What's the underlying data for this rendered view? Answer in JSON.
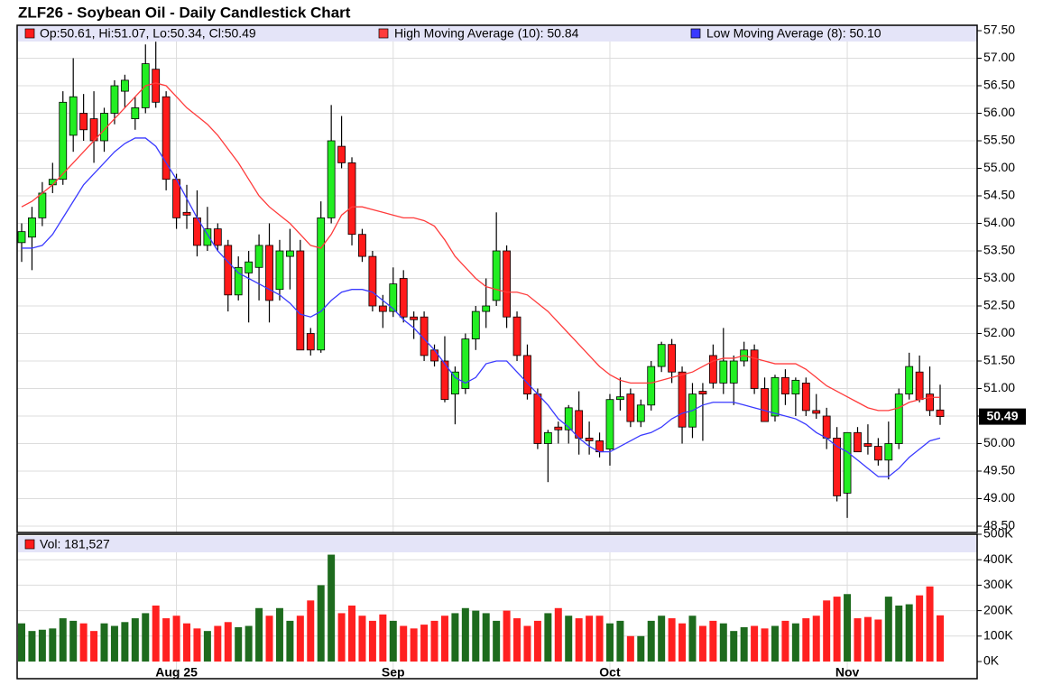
{
  "chart_data": {
    "type": "candlestick",
    "title": "ZLF26 - Soybean Oil - Daily Candlestick Chart",
    "ohlc_legend": "Op:50.61, Hi:51.07, Lo:50.34, Cl:50.49",
    "up_color": "#22ee22",
    "down_color": "#ff1a1a",
    "categories": [
      null,
      null,
      null,
      null,
      null,
      null,
      null,
      null,
      null,
      null,
      null,
      null,
      null,
      null,
      null,
      "Aug 25",
      null,
      null,
      null,
      null,
      null,
      null,
      null,
      null,
      null,
      null,
      null,
      null,
      null,
      null,
      null,
      null,
      null,
      null,
      null,
      null,
      "Sep",
      null,
      null,
      null,
      null,
      null,
      null,
      null,
      null,
      null,
      null,
      null,
      null,
      null,
      null,
      null,
      null,
      null,
      null,
      null,
      null,
      "Oct",
      null,
      null,
      null,
      null,
      null,
      null,
      null,
      null,
      null,
      null,
      null,
      null,
      null,
      null,
      null,
      null,
      null,
      null,
      null,
      null,
      null,
      null,
      "Nov",
      null,
      null,
      null,
      null,
      null,
      null,
      null,
      null,
      null
    ],
    "open": [
      53.65,
      53.75,
      54.1,
      54.7,
      54.8,
      55.6,
      56.0,
      55.9,
      55.5,
      56.0,
      56.4,
      55.9,
      56.1,
      56.8,
      56.3,
      54.8,
      54.2,
      54.1,
      53.6,
      53.9,
      53.6,
      52.7,
      53.1,
      53.2,
      53.6,
      52.8,
      53.4,
      53.5,
      52.0,
      51.7,
      54.1,
      55.4,
      55.1,
      53.8,
      53.4,
      52.5,
      52.4,
      53.0,
      52.3,
      52.3,
      51.7,
      51.5,
      50.9,
      51.0,
      51.9,
      52.4,
      52.6,
      53.5,
      52.3,
      51.6,
      50.9,
      50.0,
      50.3,
      50.25,
      50.6,
      50.1,
      50.05,
      49.9,
      50.8,
      50.9,
      50.4,
      50.7,
      51.4,
      51.8,
      51.3,
      50.3,
      50.95,
      51.6,
      51.1,
      51.1,
      51.5,
      51.7,
      51.0,
      50.5,
      51.2,
      50.9,
      51.1,
      50.6,
      50.5,
      50.1,
      49.1,
      50.2,
      50.0,
      49.95,
      49.7,
      50.0,
      50.9,
      51.3,
      50.9,
      50.61
    ],
    "high": [
      54.0,
      54.3,
      54.75,
      55.1,
      56.4,
      57.0,
      56.35,
      56.4,
      56.1,
      56.6,
      56.7,
      56.3,
      57.25,
      57.3,
      56.4,
      54.9,
      54.7,
      54.6,
      54.3,
      54.0,
      53.7,
      53.4,
      53.5,
      53.8,
      54.0,
      53.7,
      53.9,
      53.7,
      52.1,
      54.4,
      56.15,
      55.95,
      55.2,
      53.9,
      53.5,
      52.7,
      53.2,
      53.15,
      52.4,
      52.4,
      51.8,
      51.95,
      51.4,
      52.0,
      52.5,
      53.0,
      54.2,
      53.6,
      52.4,
      51.8,
      51.0,
      50.25,
      50.4,
      50.7,
      50.95,
      50.4,
      50.2,
      50.9,
      51.2,
      51.0,
      50.8,
      51.5,
      51.85,
      51.9,
      51.4,
      51.1,
      51.1,
      51.8,
      52.1,
      51.6,
      51.85,
      51.8,
      51.2,
      51.25,
      51.35,
      51.2,
      51.2,
      50.9,
      50.65,
      50.3,
      50.2,
      50.3,
      50.35,
      50.1,
      50.4,
      51.0,
      51.65,
      51.6,
      51.4,
      51.07
    ],
    "low": [
      53.3,
      53.15,
      53.95,
      54.55,
      54.7,
      55.3,
      55.5,
      55.1,
      55.3,
      55.8,
      56.1,
      55.7,
      56.0,
      56.1,
      54.6,
      53.9,
      53.9,
      53.4,
      53.5,
      53.5,
      52.4,
      52.6,
      52.2,
      52.6,
      52.2,
      52.6,
      52.8,
      51.7,
      51.6,
      51.65,
      54.0,
      55.0,
      53.6,
      53.3,
      52.4,
      52.1,
      52.3,
      52.2,
      51.9,
      51.5,
      51.4,
      50.75,
      50.35,
      50.9,
      51.7,
      52.1,
      52.5,
      52.1,
      51.5,
      50.8,
      49.9,
      49.3,
      50.0,
      50.0,
      49.8,
      49.8,
      49.75,
      49.6,
      50.6,
      50.3,
      50.3,
      50.6,
      51.3,
      51.1,
      50.0,
      50.1,
      50.05,
      51.0,
      50.9,
      50.7,
      51.4,
      50.9,
      50.4,
      50.4,
      50.7,
      50.5,
      50.5,
      50.45,
      49.9,
      48.95,
      48.65,
      49.85,
      49.8,
      49.6,
      49.35,
      49.9,
      50.8,
      50.75,
      50.5,
      50.34
    ],
    "close": [
      53.85,
      54.1,
      54.55,
      54.8,
      56.2,
      56.3,
      55.7,
      55.5,
      56.0,
      56.5,
      56.6,
      56.1,
      56.9,
      56.2,
      54.8,
      54.1,
      54.15,
      53.6,
      53.9,
      53.6,
      52.7,
      53.2,
      53.3,
      53.6,
      52.6,
      53.5,
      53.5,
      51.7,
      51.7,
      54.1,
      55.5,
      55.1,
      53.8,
      53.4,
      52.5,
      52.4,
      52.9,
      52.3,
      52.25,
      51.6,
      51.5,
      50.8,
      51.3,
      51.9,
      52.4,
      52.5,
      53.5,
      52.3,
      51.6,
      50.9,
      50.0,
      50.2,
      50.25,
      50.65,
      50.1,
      50.05,
      49.85,
      50.8,
      50.85,
      50.4,
      50.7,
      51.4,
      51.8,
      51.3,
      50.3,
      50.9,
      50.9,
      51.1,
      51.5,
      51.5,
      51.7,
      51.0,
      50.4,
      51.2,
      50.9,
      51.15,
      50.6,
      50.55,
      50.1,
      49.05,
      50.2,
      49.85,
      49.95,
      49.7,
      50.0,
      50.9,
      51.4,
      50.8,
      50.6,
      50.49
    ],
    "series": [
      {
        "name": "High Moving Average (10): 50.84",
        "color": "#ff3b3b",
        "values": [
          54.3,
          54.4,
          54.55,
          54.7,
          54.9,
          55.1,
          55.3,
          55.5,
          55.7,
          55.9,
          56.1,
          56.3,
          56.5,
          56.55,
          56.5,
          56.3,
          56.1,
          55.95,
          55.8,
          55.6,
          55.35,
          55.1,
          54.8,
          54.5,
          54.3,
          54.15,
          54.0,
          53.8,
          53.6,
          53.55,
          53.8,
          54.15,
          54.3,
          54.3,
          54.25,
          54.2,
          54.15,
          54.1,
          54.1,
          54.05,
          53.95,
          53.7,
          53.4,
          53.2,
          53.0,
          52.85,
          52.8,
          52.75,
          52.75,
          52.7,
          52.55,
          52.4,
          52.2,
          52.0,
          51.8,
          51.6,
          51.4,
          51.25,
          51.15,
          51.1,
          51.1,
          51.1,
          51.15,
          51.2,
          51.25,
          51.3,
          51.4,
          51.5,
          51.55,
          51.55,
          51.6,
          51.55,
          51.5,
          51.45,
          51.45,
          51.45,
          51.35,
          51.2,
          51.05,
          50.95,
          50.85,
          50.75,
          50.65,
          50.6,
          50.6,
          50.65,
          50.75,
          50.8,
          50.84,
          50.84
        ]
      },
      {
        "name": "Low Moving Average (8): 50.10",
        "color": "#3a3aff",
        "values": [
          53.55,
          53.55,
          53.6,
          53.8,
          54.1,
          54.4,
          54.7,
          54.9,
          55.1,
          55.3,
          55.45,
          55.55,
          55.55,
          55.4,
          55.1,
          54.8,
          54.45,
          54.1,
          53.8,
          53.5,
          53.3,
          53.1,
          53.0,
          52.9,
          52.8,
          52.7,
          52.55,
          52.35,
          52.3,
          52.4,
          52.6,
          52.75,
          52.8,
          52.8,
          52.75,
          52.6,
          52.45,
          52.25,
          52.1,
          51.9,
          51.7,
          51.45,
          51.2,
          51.1,
          51.2,
          51.45,
          51.5,
          51.5,
          51.3,
          51.1,
          50.9,
          50.7,
          50.45,
          50.3,
          50.1,
          49.95,
          49.85,
          49.85,
          49.95,
          50.05,
          50.15,
          50.2,
          50.3,
          50.45,
          50.55,
          50.6,
          50.7,
          50.75,
          50.75,
          50.75,
          50.7,
          50.65,
          50.6,
          50.55,
          50.5,
          50.45,
          50.35,
          50.2,
          50.1,
          49.95,
          49.85,
          49.7,
          49.55,
          49.4,
          49.4,
          49.55,
          49.75,
          49.9,
          50.05,
          50.1
        ]
      }
    ],
    "ylim": [
      48.5,
      57.5
    ],
    "yticks": [
      {
        "value": 48.5,
        "label": "48.50"
      },
      {
        "value": 49,
        "label": "49.00"
      },
      {
        "value": 49.5,
        "label": "49.50"
      },
      {
        "value": 50,
        "label": "50.00"
      },
      {
        "value": 50.5,
        "label": "50.50"
      },
      {
        "value": 51,
        "label": "51.00"
      },
      {
        "value": 51.5,
        "label": "51.50"
      },
      {
        "value": 52,
        "label": "52.00"
      },
      {
        "value": 52.5,
        "label": "52.50"
      },
      {
        "value": 53,
        "label": "53.00"
      },
      {
        "value": 53.5,
        "label": "53.50"
      },
      {
        "value": 54,
        "label": "54.00"
      },
      {
        "value": 54.5,
        "label": "54.50"
      },
      {
        "value": 55,
        "label": "55.00"
      },
      {
        "value": 55.5,
        "label": "55.50"
      },
      {
        "value": 56,
        "label": "56.00"
      },
      {
        "value": 56.5,
        "label": "56.50"
      },
      {
        "value": 57,
        "label": "57.00"
      },
      {
        "value": 57.5,
        "label": "57.50"
      }
    ],
    "grid": true,
    "volume": {
      "legend": "Vol: 181,527",
      "up_color": "#1e6b1e",
      "down_color": "#ff2020",
      "values": [
        150000,
        120000,
        125000,
        130000,
        170000,
        160000,
        150000,
        120000,
        150000,
        140000,
        155000,
        170000,
        190000,
        220000,
        170000,
        180000,
        150000,
        130000,
        120000,
        140000,
        155000,
        135000,
        140000,
        210000,
        180000,
        210000,
        160000,
        180000,
        240000,
        300000,
        420000,
        190000,
        220000,
        180000,
        160000,
        185000,
        160000,
        140000,
        130000,
        145000,
        160000,
        180000,
        190000,
        210000,
        200000,
        190000,
        160000,
        200000,
        170000,
        140000,
        160000,
        190000,
        210000,
        180000,
        170000,
        180000,
        180000,
        150000,
        160000,
        100000,
        100000,
        160000,
        180000,
        170000,
        150000,
        180000,
        140000,
        160000,
        150000,
        120000,
        135000,
        140000,
        130000,
        140000,
        160000,
        150000,
        170000,
        180000,
        240000,
        255000,
        265000,
        170000,
        175000,
        165000,
        255000,
        220000,
        225000,
        260000,
        295000,
        181527
      ],
      "ylim": [
        0,
        500000
      ],
      "yticks": [
        {
          "value": 0,
          "label": "0K"
        },
        {
          "value": 100000,
          "label": "100K"
        },
        {
          "value": 200000,
          "label": "200K"
        },
        {
          "value": 300000,
          "label": "300K"
        },
        {
          "value": 400000,
          "label": "400K"
        },
        {
          "value": 500000,
          "label": "500K"
        }
      ]
    }
  }
}
